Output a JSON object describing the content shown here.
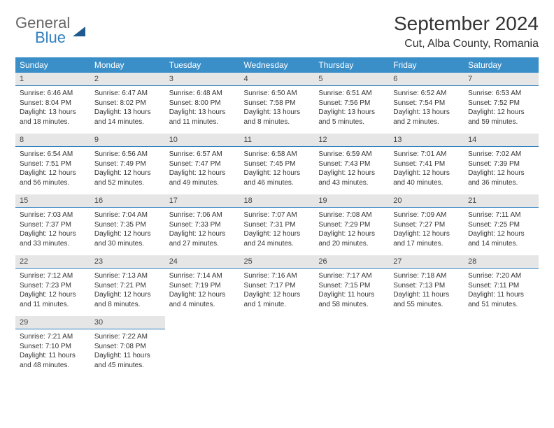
{
  "brand": {
    "word1": "General",
    "word2": "Blue"
  },
  "title": "September 2024",
  "location": "Cut, Alba County, Romania",
  "colors": {
    "header_bg": "#3b8fc9",
    "daynum_bg": "#e6e6e6",
    "divider": "#2f7fbf",
    "text": "#333333",
    "brand_gray": "#666666",
    "brand_blue": "#2f7fbf"
  },
  "dow": [
    "Sunday",
    "Monday",
    "Tuesday",
    "Wednesday",
    "Thursday",
    "Friday",
    "Saturday"
  ],
  "weeks": [
    [
      {
        "n": "1",
        "sr": "Sunrise: 6:46 AM",
        "ss": "Sunset: 8:04 PM",
        "dl": "Daylight: 13 hours and 18 minutes."
      },
      {
        "n": "2",
        "sr": "Sunrise: 6:47 AM",
        "ss": "Sunset: 8:02 PM",
        "dl": "Daylight: 13 hours and 14 minutes."
      },
      {
        "n": "3",
        "sr": "Sunrise: 6:48 AM",
        "ss": "Sunset: 8:00 PM",
        "dl": "Daylight: 13 hours and 11 minutes."
      },
      {
        "n": "4",
        "sr": "Sunrise: 6:50 AM",
        "ss": "Sunset: 7:58 PM",
        "dl": "Daylight: 13 hours and 8 minutes."
      },
      {
        "n": "5",
        "sr": "Sunrise: 6:51 AM",
        "ss": "Sunset: 7:56 PM",
        "dl": "Daylight: 13 hours and 5 minutes."
      },
      {
        "n": "6",
        "sr": "Sunrise: 6:52 AM",
        "ss": "Sunset: 7:54 PM",
        "dl": "Daylight: 13 hours and 2 minutes."
      },
      {
        "n": "7",
        "sr": "Sunrise: 6:53 AM",
        "ss": "Sunset: 7:52 PM",
        "dl": "Daylight: 12 hours and 59 minutes."
      }
    ],
    [
      {
        "n": "8",
        "sr": "Sunrise: 6:54 AM",
        "ss": "Sunset: 7:51 PM",
        "dl": "Daylight: 12 hours and 56 minutes."
      },
      {
        "n": "9",
        "sr": "Sunrise: 6:56 AM",
        "ss": "Sunset: 7:49 PM",
        "dl": "Daylight: 12 hours and 52 minutes."
      },
      {
        "n": "10",
        "sr": "Sunrise: 6:57 AM",
        "ss": "Sunset: 7:47 PM",
        "dl": "Daylight: 12 hours and 49 minutes."
      },
      {
        "n": "11",
        "sr": "Sunrise: 6:58 AM",
        "ss": "Sunset: 7:45 PM",
        "dl": "Daylight: 12 hours and 46 minutes."
      },
      {
        "n": "12",
        "sr": "Sunrise: 6:59 AM",
        "ss": "Sunset: 7:43 PM",
        "dl": "Daylight: 12 hours and 43 minutes."
      },
      {
        "n": "13",
        "sr": "Sunrise: 7:01 AM",
        "ss": "Sunset: 7:41 PM",
        "dl": "Daylight: 12 hours and 40 minutes."
      },
      {
        "n": "14",
        "sr": "Sunrise: 7:02 AM",
        "ss": "Sunset: 7:39 PM",
        "dl": "Daylight: 12 hours and 36 minutes."
      }
    ],
    [
      {
        "n": "15",
        "sr": "Sunrise: 7:03 AM",
        "ss": "Sunset: 7:37 PM",
        "dl": "Daylight: 12 hours and 33 minutes."
      },
      {
        "n": "16",
        "sr": "Sunrise: 7:04 AM",
        "ss": "Sunset: 7:35 PM",
        "dl": "Daylight: 12 hours and 30 minutes."
      },
      {
        "n": "17",
        "sr": "Sunrise: 7:06 AM",
        "ss": "Sunset: 7:33 PM",
        "dl": "Daylight: 12 hours and 27 minutes."
      },
      {
        "n": "18",
        "sr": "Sunrise: 7:07 AM",
        "ss": "Sunset: 7:31 PM",
        "dl": "Daylight: 12 hours and 24 minutes."
      },
      {
        "n": "19",
        "sr": "Sunrise: 7:08 AM",
        "ss": "Sunset: 7:29 PM",
        "dl": "Daylight: 12 hours and 20 minutes."
      },
      {
        "n": "20",
        "sr": "Sunrise: 7:09 AM",
        "ss": "Sunset: 7:27 PM",
        "dl": "Daylight: 12 hours and 17 minutes."
      },
      {
        "n": "21",
        "sr": "Sunrise: 7:11 AM",
        "ss": "Sunset: 7:25 PM",
        "dl": "Daylight: 12 hours and 14 minutes."
      }
    ],
    [
      {
        "n": "22",
        "sr": "Sunrise: 7:12 AM",
        "ss": "Sunset: 7:23 PM",
        "dl": "Daylight: 12 hours and 11 minutes."
      },
      {
        "n": "23",
        "sr": "Sunrise: 7:13 AM",
        "ss": "Sunset: 7:21 PM",
        "dl": "Daylight: 12 hours and 8 minutes."
      },
      {
        "n": "24",
        "sr": "Sunrise: 7:14 AM",
        "ss": "Sunset: 7:19 PM",
        "dl": "Daylight: 12 hours and 4 minutes."
      },
      {
        "n": "25",
        "sr": "Sunrise: 7:16 AM",
        "ss": "Sunset: 7:17 PM",
        "dl": "Daylight: 12 hours and 1 minute."
      },
      {
        "n": "26",
        "sr": "Sunrise: 7:17 AM",
        "ss": "Sunset: 7:15 PM",
        "dl": "Daylight: 11 hours and 58 minutes."
      },
      {
        "n": "27",
        "sr": "Sunrise: 7:18 AM",
        "ss": "Sunset: 7:13 PM",
        "dl": "Daylight: 11 hours and 55 minutes."
      },
      {
        "n": "28",
        "sr": "Sunrise: 7:20 AM",
        "ss": "Sunset: 7:11 PM",
        "dl": "Daylight: 11 hours and 51 minutes."
      }
    ],
    [
      {
        "n": "29",
        "sr": "Sunrise: 7:21 AM",
        "ss": "Sunset: 7:10 PM",
        "dl": "Daylight: 11 hours and 48 minutes."
      },
      {
        "n": "30",
        "sr": "Sunrise: 7:22 AM",
        "ss": "Sunset: 7:08 PM",
        "dl": "Daylight: 11 hours and 45 minutes."
      },
      null,
      null,
      null,
      null,
      null
    ]
  ]
}
